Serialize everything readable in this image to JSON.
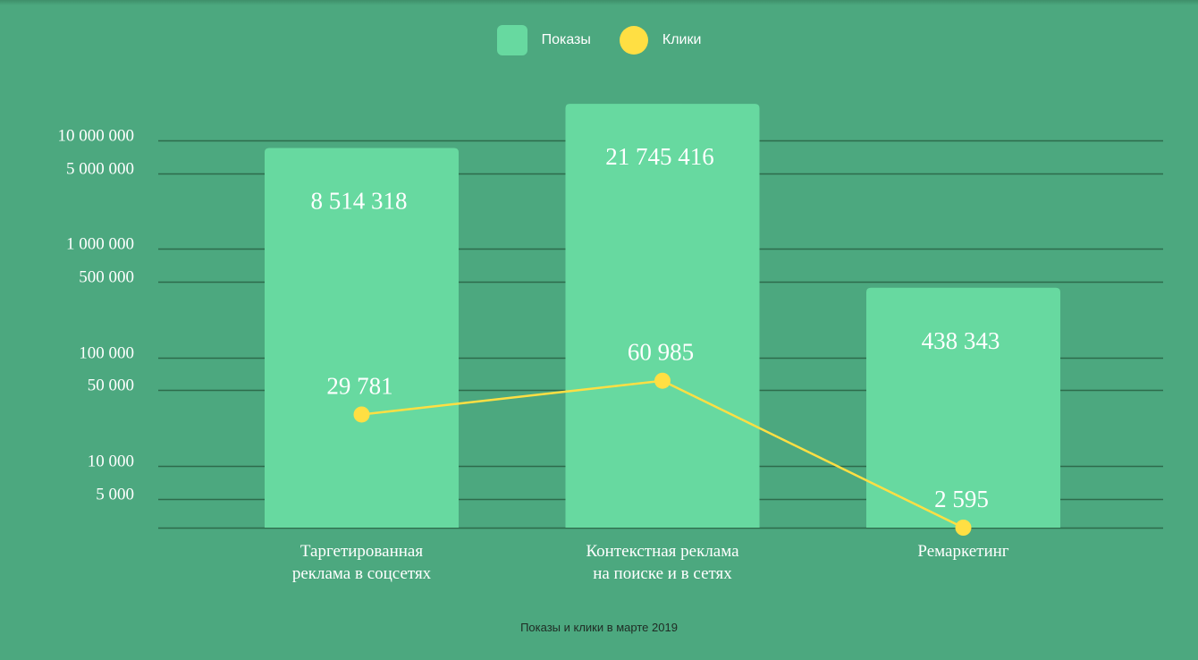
{
  "legend": {
    "bars_label": "Показы",
    "line_label": "Клики"
  },
  "caption": "Показы и клики в марте 2019",
  "chart_data": {
    "type": "bar",
    "scale": "log",
    "grid": true,
    "legend_position": "top-center",
    "title": "Показы и клики в марте 2019",
    "categories": [
      [
        "Таргетированная",
        "реклама в соцсетях"
      ],
      [
        "Контекстная реклама",
        "на поиске и в сетях"
      ],
      [
        "Ремаркетинг"
      ]
    ],
    "y_ticks": [
      {
        "value": 10000000,
        "label": "10 000 000"
      },
      {
        "value": 5000000,
        "label": "5 000 000"
      },
      {
        "value": 1000000,
        "label": "1 000 000"
      },
      {
        "value": 500000,
        "label": "500 000"
      },
      {
        "value": 100000,
        "label": "100 000"
      },
      {
        "value": 50000,
        "label": "50 000"
      },
      {
        "value": 10000,
        "label": "10 000"
      },
      {
        "value": 5000,
        "label": "5 000"
      }
    ],
    "series": [
      {
        "name": "Показы",
        "type": "bar",
        "color": "#67d9a0",
        "values": [
          8514318,
          21745416,
          438343
        ],
        "labels": [
          "8 514 318",
          "21 745 416",
          "438 343"
        ]
      },
      {
        "name": "Клики",
        "type": "line",
        "color": "#ffdf43",
        "values": [
          29781,
          60985,
          2595
        ],
        "labels": [
          "29 781",
          "60 985",
          "2 595"
        ]
      }
    ]
  }
}
